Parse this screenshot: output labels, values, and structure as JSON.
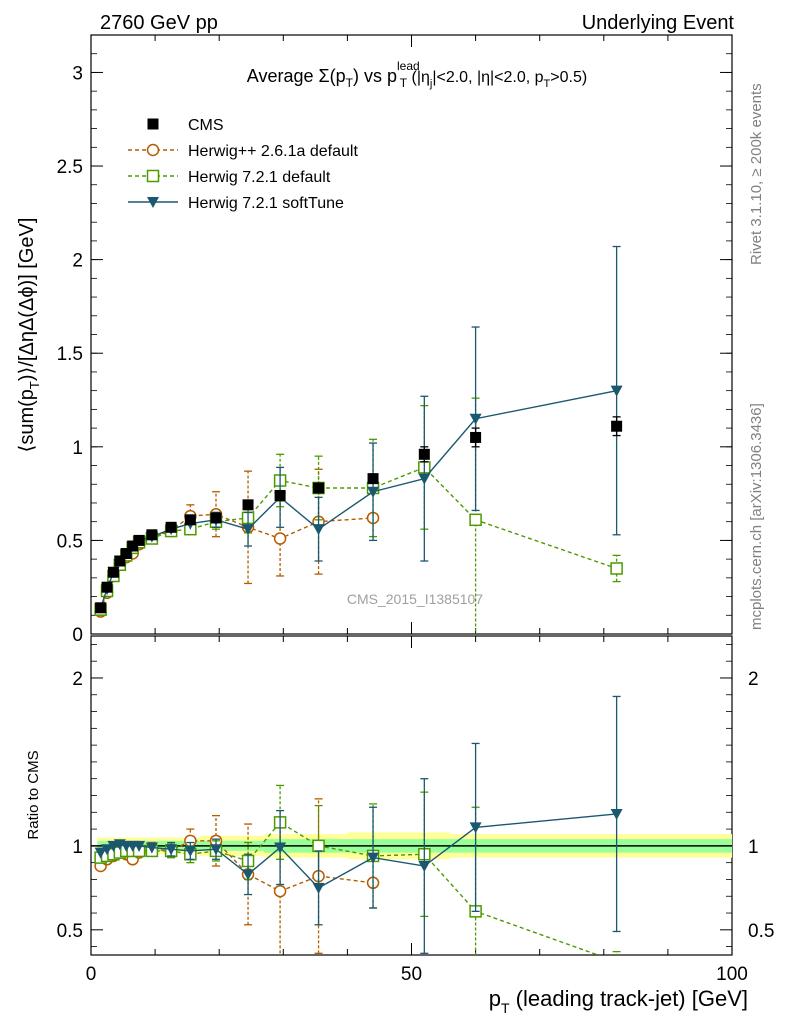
{
  "header": {
    "left": "2760 GeV pp",
    "right": "Underlying Event"
  },
  "side_labels": {
    "rivet": "Rivet 3.1.10, ≥ 200k events",
    "mcplots": "mcplots.cern.ch [arXiv:1306.3436]"
  },
  "watermark": "CMS_2015_I1385107",
  "chart_data": [
    {
      "type": "scatter",
      "panel": "main",
      "title": "Average Σ(p_T) vs p_T^lead (|η_j|<2.0, |η|<2.0, p_T>0.5)",
      "title_parts": {
        "pre": "Average Σ(p",
        "sub1": "T",
        "mid1": ") vs p",
        "sup": "lead",
        "sub2": "T",
        "mid2": " (|η",
        "sub3": "j",
        "mid3": "|<2.0, |η|<2.0, p",
        "sub4": "T",
        "post": ">0.5)"
      },
      "ylabel": "⟨sum(p_T)⟩/[ΔηΔ(Δϕ)] [GeV]",
      "ylabel_parts": {
        "pre": "⟨sum(p",
        "sub": "T",
        "post": ")⟩/[ΔηΔ(Δϕ)] [GeV]"
      },
      "xlim": [
        0,
        100
      ],
      "ylim": [
        0,
        3.2
      ],
      "yticks": [
        "0",
        "0.5",
        "1",
        "1.5",
        "2",
        "2.5",
        "3"
      ],
      "legend_position": "top-left",
      "series": [
        {
          "name": "CMS",
          "color": "#000000",
          "marker": "square-filled",
          "x": [
            1.5,
            2.5,
            3.5,
            4.5,
            5.5,
            6.5,
            7.5,
            9.5,
            12.5,
            15.5,
            19.5,
            24.5,
            29.5,
            35.5,
            44,
            52,
            60,
            82
          ],
          "y": [
            0.14,
            0.25,
            0.33,
            0.39,
            0.43,
            0.47,
            0.5,
            0.53,
            0.57,
            0.61,
            0.62,
            0.69,
            0.74,
            0.78,
            0.83,
            0.96,
            1.05,
            1.11
          ],
          "yerr": [
            0.01,
            0.01,
            0.01,
            0.01,
            0.01,
            0.01,
            0.01,
            0.01,
            0.01,
            0.02,
            0.02,
            0.02,
            0.02,
            0.03,
            0.03,
            0.04,
            0.05,
            0.05
          ]
        },
        {
          "name": "Herwig++ 2.6.1a default",
          "color": "#b35c00",
          "marker": "circle-open",
          "dashed": true,
          "x": [
            1.5,
            2.5,
            3.5,
            4.5,
            5.5,
            6.5,
            7.5,
            9.5,
            12.5,
            15.5,
            19.5,
            24.5,
            29.5,
            35.5,
            44
          ],
          "y": [
            0.12,
            0.22,
            0.31,
            0.37,
            0.41,
            0.43,
            0.48,
            0.52,
            0.55,
            0.63,
            0.64,
            0.57,
            0.51,
            0.6,
            0.62
          ],
          "yerr": [
            0.01,
            0.01,
            0.01,
            0.02,
            0.02,
            0.02,
            0.02,
            0.03,
            0.03,
            0.06,
            0.12,
            0.3,
            0.2,
            0.28,
            0.0
          ]
        },
        {
          "name": "Herwig 7.2.1 default",
          "color": "#4c9a00",
          "marker": "square-open",
          "dashed": true,
          "x": [
            1.5,
            2.5,
            3.5,
            4.5,
            5.5,
            6.5,
            7.5,
            9.5,
            12.5,
            15.5,
            19.5,
            24.5,
            29.5,
            35.5,
            44,
            52,
            60,
            82
          ],
          "y": [
            0.13,
            0.23,
            0.31,
            0.37,
            0.42,
            0.46,
            0.49,
            0.51,
            0.55,
            0.56,
            0.6,
            0.62,
            0.82,
            0.78,
            0.78,
            0.89,
            0.61,
            0.35
          ],
          "yerr": [
            0.01,
            0.01,
            0.01,
            0.01,
            0.01,
            0.01,
            0.02,
            0.02,
            0.02,
            0.03,
            0.04,
            0.08,
            0.14,
            0.17,
            0.26,
            0.33,
            0.65,
            0.07
          ]
        },
        {
          "name": "Herwig 7.2.1 softTune",
          "color": "#1b5870",
          "marker": "triangle-down-filled",
          "dashed": false,
          "x": [
            1.5,
            2.5,
            3.5,
            4.5,
            5.5,
            6.5,
            7.5,
            9.5,
            12.5,
            15.5,
            19.5,
            24.5,
            29.5,
            35.5,
            44,
            52,
            60,
            82
          ],
          "y": [
            0.14,
            0.24,
            0.33,
            0.39,
            0.43,
            0.47,
            0.5,
            0.52,
            0.56,
            0.59,
            0.61,
            0.56,
            0.73,
            0.56,
            0.76,
            0.83,
            1.15,
            1.3
          ],
          "yerr": [
            0.01,
            0.01,
            0.01,
            0.01,
            0.01,
            0.01,
            0.02,
            0.02,
            0.02,
            0.03,
            0.04,
            0.09,
            0.16,
            0.17,
            0.26,
            0.44,
            0.49,
            0.77
          ]
        }
      ]
    },
    {
      "type": "scatter",
      "panel": "ratio",
      "ylabel": "Ratio to CMS",
      "xlabel": "p_T (leading track-jet) [GeV]",
      "xlabel_parts": {
        "pre": "p",
        "sub": "T",
        "post": " (leading track-jet) [GeV]"
      },
      "xlim": [
        0,
        100
      ],
      "ylim": [
        0.35,
        2.25
      ],
      "xticks": [
        "0",
        "50",
        "100"
      ],
      "yticks": [
        "0.5",
        "1",
        "2"
      ],
      "bands": {
        "x": [
          1,
          2,
          3,
          4,
          5,
          6,
          7,
          8,
          11,
          14,
          17,
          22,
          27,
          32,
          40,
          48,
          56,
          70,
          100
        ],
        "yellow_half": [
          0.05,
          0.05,
          0.05,
          0.05,
          0.05,
          0.05,
          0.05,
          0.05,
          0.05,
          0.05,
          0.06,
          0.06,
          0.07,
          0.07,
          0.08,
          0.08,
          0.07,
          0.07,
          0.07
        ],
        "green_half": [
          0.03,
          0.03,
          0.03,
          0.03,
          0.03,
          0.03,
          0.03,
          0.03,
          0.03,
          0.03,
          0.03,
          0.03,
          0.04,
          0.04,
          0.04,
          0.04,
          0.04,
          0.04,
          0.04
        ]
      },
      "series": [
        {
          "name": "Herwig++ 2.6.1a default",
          "color": "#b35c00",
          "marker": "circle-open",
          "dashed": true,
          "x": [
            1.5,
            2.5,
            3.5,
            4.5,
            5.5,
            6.5,
            7.5,
            9.5,
            12.5,
            15.5,
            19.5,
            24.5,
            29.5,
            35.5,
            44
          ],
          "y": [
            0.88,
            0.92,
            0.94,
            0.96,
            0.95,
            0.92,
            0.96,
            0.98,
            0.97,
            1.03,
            1.03,
            0.83,
            0.73,
            0.82,
            0.78
          ],
          "yerr": [
            0.02,
            0.02,
            0.02,
            0.02,
            0.03,
            0.03,
            0.03,
            0.04,
            0.04,
            0.07,
            0.15,
            0.3,
            0.4,
            0.46,
            0.0
          ]
        },
        {
          "name": "Herwig 7.2.1 default",
          "color": "#4c9a00",
          "marker": "square-open",
          "dashed": true,
          "x": [
            1.5,
            2.5,
            3.5,
            4.5,
            5.5,
            6.5,
            7.5,
            9.5,
            12.5,
            15.5,
            19.5,
            24.5,
            29.5,
            35.5,
            44,
            52,
            60,
            82
          ],
          "y": [
            0.93,
            0.94,
            0.95,
            0.96,
            0.97,
            0.97,
            0.97,
            0.97,
            0.97,
            0.95,
            0.97,
            0.91,
            1.14,
            1.0,
            0.94,
            0.95,
            0.61,
            0.31
          ],
          "yerr": [
            0.02,
            0.02,
            0.02,
            0.02,
            0.02,
            0.02,
            0.03,
            0.03,
            0.04,
            0.05,
            0.06,
            0.11,
            0.22,
            0.24,
            0.31,
            0.37,
            0.62,
            0.06
          ]
        },
        {
          "name": "Herwig 7.2.1 softTune",
          "color": "#1b5870",
          "marker": "triangle-down-filled",
          "dashed": false,
          "x": [
            1.5,
            2.5,
            3.5,
            4.5,
            5.5,
            6.5,
            7.5,
            9.5,
            12.5,
            15.5,
            19.5,
            24.5,
            29.5,
            35.5,
            44,
            52,
            60,
            82
          ],
          "y": [
            0.96,
            0.98,
            1.0,
            1.01,
            1.0,
            1.0,
            1.0,
            0.99,
            0.98,
            0.97,
            0.98,
            0.83,
            0.99,
            0.75,
            0.93,
            0.88,
            1.11,
            1.19
          ],
          "yerr": [
            0.02,
            0.02,
            0.02,
            0.02,
            0.02,
            0.02,
            0.03,
            0.03,
            0.04,
            0.05,
            0.06,
            0.12,
            0.22,
            0.22,
            0.3,
            0.52,
            0.5,
            0.7
          ]
        }
      ]
    }
  ]
}
